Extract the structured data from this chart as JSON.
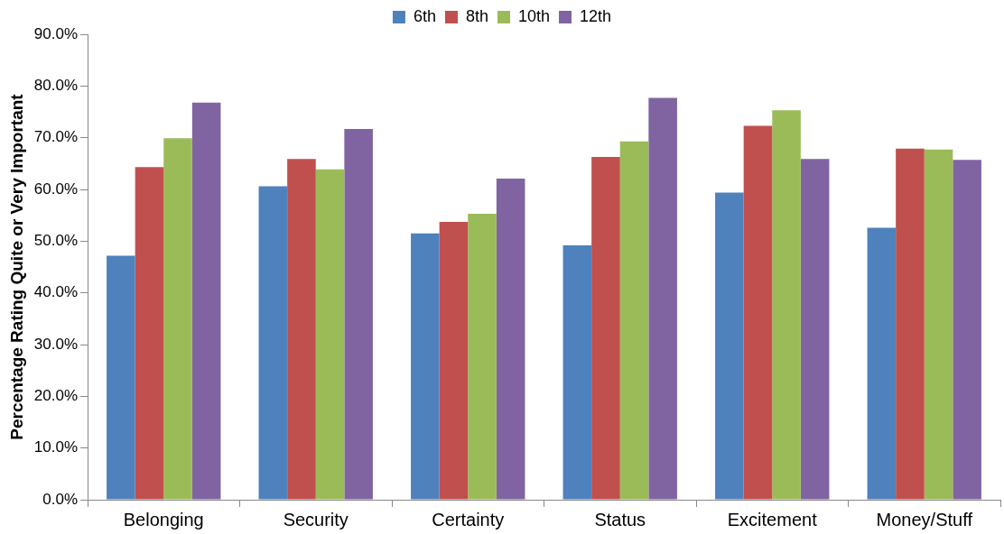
{
  "chart_data": {
    "type": "bar",
    "ylabel": "Percentage Rating Quite or Very Important",
    "categories": [
      "Belonging",
      "Security",
      "Certainty",
      "Status",
      "Excitement",
      "Money/Stuff"
    ],
    "series": [
      {
        "name": "6th",
        "color": "#4f81bd",
        "values": [
          47.2,
          60.6,
          51.5,
          49.2,
          59.4,
          52.6
        ]
      },
      {
        "name": "8th",
        "color": "#c0504d",
        "values": [
          64.3,
          65.9,
          53.7,
          66.3,
          72.3,
          67.9
        ]
      },
      {
        "name": "10th",
        "color": "#9bbb59",
        "values": [
          69.9,
          63.9,
          55.3,
          69.3,
          75.3,
          67.7
        ]
      },
      {
        "name": "12th",
        "color": "#8064a2",
        "values": [
          76.8,
          71.7,
          62.1,
          77.7,
          65.9,
          65.7
        ]
      }
    ],
    "ylim": [
      0,
      90
    ],
    "yticks": [
      {
        "value": 0,
        "label": "0.0%"
      },
      {
        "value": 10,
        "label": "10.0%"
      },
      {
        "value": 20,
        "label": "20.0%"
      },
      {
        "value": 30,
        "label": "30.0%"
      },
      {
        "value": 40,
        "label": "40.0%"
      },
      {
        "value": 50,
        "label": "50.0%"
      },
      {
        "value": 60,
        "label": "60.0%"
      },
      {
        "value": 70,
        "label": "70.0%"
      },
      {
        "value": 80,
        "label": "80.0%"
      },
      {
        "value": 90,
        "label": "90.0%"
      }
    ],
    "grid": false,
    "legend": "top"
  }
}
